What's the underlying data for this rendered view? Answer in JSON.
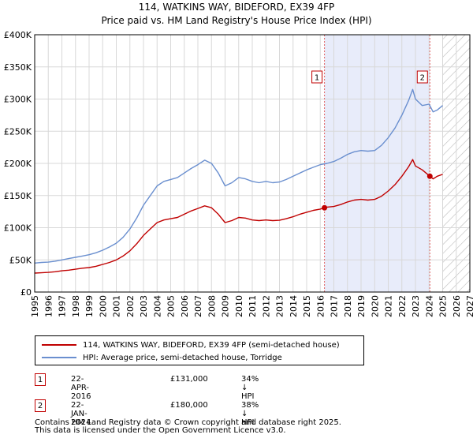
{
  "title_line1": "114, WATKINS WAY, BIDEFORD, EX39 4FP",
  "title_line2": "Price paid vs. HM Land Registry's House Price Index (HPI)",
  "colors": {
    "red": "#c00000",
    "blue": "#6a8fcf",
    "shade": "#e8ecfa",
    "grid": "#d8d8d8"
  },
  "legend": {
    "red_label": "114, WATKINS WAY, BIDEFORD, EX39 4FP (semi-detached house)",
    "blue_label": "HPI: Average price, semi-detached house, Torridge"
  },
  "sales": [
    {
      "num": "1",
      "date": "22-APR-2016",
      "price": "£131,000",
      "diff": "34% ↓ HPI"
    },
    {
      "num": "2",
      "date": "22-JAN-2024",
      "price": "£180,000",
      "diff": "38% ↓ HPI"
    }
  ],
  "footer_line1": "Contains HM Land Registry data © Crown copyright and database right 2025.",
  "footer_line2": "This data is licensed under the Open Government Licence v3.0.",
  "chart_data": {
    "type": "line",
    "title": "Price paid vs. HM Land Registry's House Price Index (HPI)",
    "xlim": [
      1995,
      2027
    ],
    "ylim": [
      0,
      400000
    ],
    "x_ticks": [
      1995,
      1996,
      1997,
      1998,
      1999,
      2000,
      2001,
      2002,
      2003,
      2004,
      2005,
      2006,
      2007,
      2008,
      2009,
      2010,
      2011,
      2012,
      2013,
      2014,
      2015,
      2016,
      2017,
      2018,
      2019,
      2020,
      2021,
      2022,
      2023,
      2024,
      2025,
      2026,
      2027
    ],
    "y_ticks": [
      0,
      50000,
      100000,
      150000,
      200000,
      250000,
      300000,
      350000,
      400000
    ],
    "y_tick_labels": [
      "£0",
      "£50K",
      "£100K",
      "£150K",
      "£200K",
      "£250K",
      "£300K",
      "£350K",
      "£400K"
    ],
    "forecast_from": 2025.0,
    "highlight_range": [
      2016.31,
      2024.06
    ],
    "series": [
      {
        "name": "HPI: Average price, semi-detached house, Torridge",
        "color": "#6a8fcf",
        "x": [
          1995.0,
          1995.5,
          1996.0,
          1996.5,
          1997.0,
          1997.5,
          1998.0,
          1998.5,
          1999.0,
          1999.5,
          2000.0,
          2000.5,
          2001.0,
          2001.5,
          2002.0,
          2002.5,
          2003.0,
          2003.5,
          2004.0,
          2004.5,
          2005.0,
          2005.5,
          2006.0,
          2006.5,
          2007.0,
          2007.5,
          2008.0,
          2008.5,
          2009.0,
          2009.5,
          2010.0,
          2010.5,
          2011.0,
          2011.5,
          2012.0,
          2012.5,
          2013.0,
          2013.5,
          2014.0,
          2014.5,
          2015.0,
          2015.5,
          2016.0,
          2016.5,
          2017.0,
          2017.5,
          2018.0,
          2018.5,
          2019.0,
          2019.5,
          2020.0,
          2020.5,
          2021.0,
          2021.5,
          2022.0,
          2022.5,
          2022.8,
          2023.0,
          2023.5,
          2024.0,
          2024.3,
          2024.6,
          2025.0
        ],
        "values": [
          45000,
          46000,
          46500,
          48000,
          50000,
          52000,
          54000,
          56000,
          58000,
          61000,
          65000,
          70000,
          76000,
          85000,
          98000,
          115000,
          135000,
          150000,
          165000,
          172000,
          175000,
          178000,
          185000,
          192000,
          198000,
          205000,
          200000,
          185000,
          165000,
          170000,
          178000,
          176000,
          172000,
          170000,
          172000,
          170000,
          171000,
          175000,
          180000,
          185000,
          190000,
          194000,
          198000,
          200000,
          203000,
          208000,
          214000,
          218000,
          220000,
          219000,
          220000,
          228000,
          240000,
          255000,
          275000,
          298000,
          315000,
          300000,
          290000,
          292000,
          280000,
          283000,
          290000
        ]
      },
      {
        "name": "114, WATKINS WAY, BIDEFORD, EX39 4FP (semi-detached house)",
        "color": "#c00000",
        "x": [
          1995.0,
          1995.5,
          1996.0,
          1996.5,
          1997.0,
          1997.5,
          1998.0,
          1998.5,
          1999.0,
          1999.5,
          2000.0,
          2000.5,
          2001.0,
          2001.5,
          2002.0,
          2002.5,
          2003.0,
          2003.5,
          2004.0,
          2004.5,
          2005.0,
          2005.5,
          2006.0,
          2006.5,
          2007.0,
          2007.5,
          2008.0,
          2008.5,
          2009.0,
          2009.5,
          2010.0,
          2010.5,
          2011.0,
          2011.5,
          2012.0,
          2012.5,
          2013.0,
          2013.5,
          2014.0,
          2014.5,
          2015.0,
          2015.5,
          2016.0,
          2016.31,
          2016.5,
          2017.0,
          2017.5,
          2018.0,
          2018.5,
          2019.0,
          2019.5,
          2020.0,
          2020.5,
          2021.0,
          2021.5,
          2022.0,
          2022.5,
          2022.8,
          2023.0,
          2023.5,
          2024.06,
          2024.3,
          2024.6,
          2025.0
        ],
        "values": [
          29500,
          30000,
          30500,
          31500,
          33000,
          34000,
          35500,
          37000,
          38000,
          40000,
          43000,
          46000,
          50000,
          56000,
          64000,
          75000,
          88000,
          98000,
          108000,
          112000,
          114000,
          116000,
          121000,
          126000,
          130000,
          134000,
          131000,
          121000,
          108000,
          111000,
          116000,
          115000,
          112000,
          111000,
          112000,
          111000,
          111500,
          114000,
          117000,
          121000,
          124000,
          127000,
          129000,
          131000,
          132000,
          133000,
          136000,
          140000,
          143000,
          144000,
          143000,
          144000,
          149000,
          157000,
          167000,
          180000,
          195000,
          206000,
          196000,
          190000,
          180000,
          176000,
          180000,
          183000
        ]
      }
    ],
    "markers": [
      {
        "label": "1",
        "x": 2016.31,
        "y": 131000
      },
      {
        "label": "2",
        "x": 2024.06,
        "y": 180000
      }
    ]
  }
}
